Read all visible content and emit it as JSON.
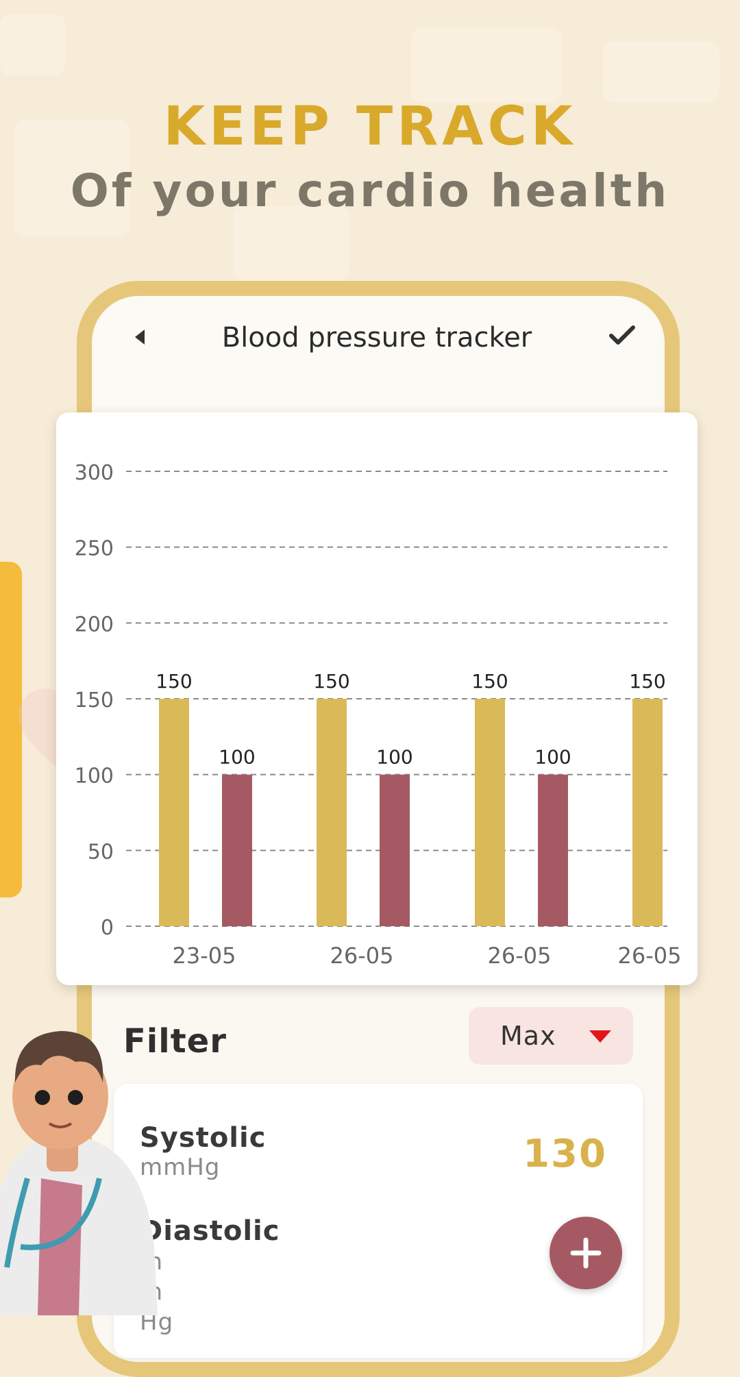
{
  "hero": {
    "title": "KEEP TRACK",
    "subtitle": "Of your cardio health"
  },
  "header": {
    "back_icon": "back-arrow-icon",
    "title": "Blood pressure tracker",
    "confirm_icon": "checkmark-icon"
  },
  "chart_data": {
    "type": "bar",
    "categories": [
      "23-05",
      "26-05",
      "26-05",
      "26-05"
    ],
    "series": [
      {
        "values": [
          150,
          150,
          150,
          150
        ],
        "color": "#dab958"
      },
      {
        "values": [
          100,
          100,
          100,
          null
        ],
        "color": "#a55a63"
      }
    ],
    "data_labels": [
      [
        "150",
        "150",
        "150",
        "150"
      ],
      [
        "100",
        "100",
        "100",
        ""
      ]
    ],
    "yticks": [
      0,
      50,
      100,
      150,
      200,
      250,
      300
    ],
    "ylim": [
      0,
      300
    ],
    "grid": "dashed horizontal",
    "title": "",
    "xlabel": "",
    "ylabel": ""
  },
  "filter": {
    "label": "Filter",
    "selected": "Max",
    "caret_color": "#e3151b"
  },
  "readings": {
    "systolic_label": "Systolic",
    "systolic_unit": "mmHg",
    "systolic_value": "130",
    "diastolic_label": "Diastolic",
    "diastolic_unit": "mmHg"
  },
  "fab": {
    "icon": "plus-icon"
  },
  "colors": {
    "accent_gold": "#d9a92c",
    "bar_gold": "#dab958",
    "bar_red": "#a55a63",
    "side_tab": "#f5bb3c"
  }
}
